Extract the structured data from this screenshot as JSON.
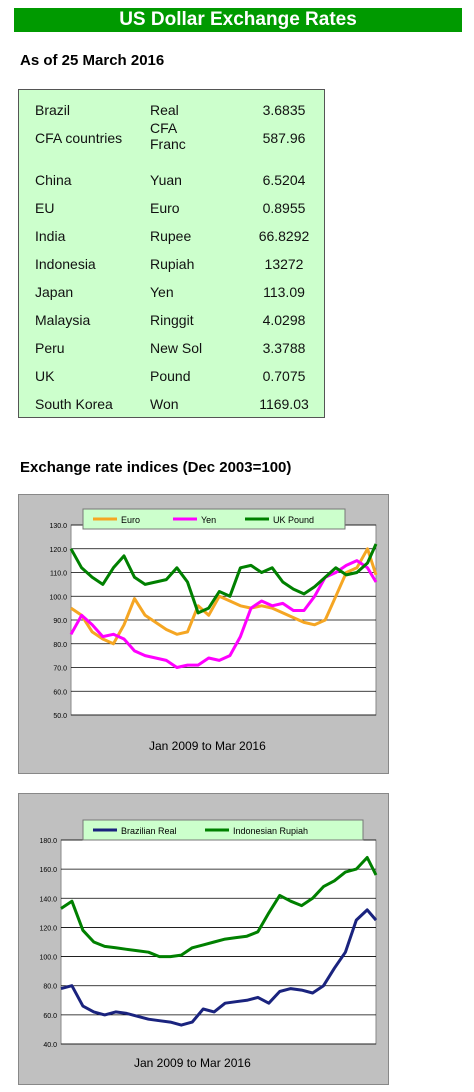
{
  "title": "US Dollar Exchange Rates",
  "as_of": "As of 25 March 2016",
  "rates": [
    {
      "country": "Brazil",
      "currency": "Real",
      "value": "3.6835"
    },
    {
      "country": "CFA countries",
      "currency": "CFA Franc",
      "value": "587.96"
    },
    {
      "country": "China",
      "currency": "Yuan",
      "value": "6.5204"
    },
    {
      "country": "EU",
      "currency": "Euro",
      "value": "0.8955"
    },
    {
      "country": "India",
      "currency": "Rupee",
      "value": "66.8292"
    },
    {
      "country": "Indonesia",
      "currency": "Rupiah",
      "value": "13272"
    },
    {
      "country": "Japan",
      "currency": "Yen",
      "value": "113.09"
    },
    {
      "country": "Malaysia",
      "currency": "Ringgit",
      "value": "4.0298"
    },
    {
      "country": "Peru",
      "currency": "New Sol",
      "value": "3.3788"
    },
    {
      "country": "UK",
      "currency": "Pound",
      "value": "0.7075"
    },
    {
      "country": "South Korea",
      "currency": "Won",
      "value": "1169.03"
    }
  ],
  "indices_heading": "Exchange rate indices (Dec 2003=100)",
  "chart_data": [
    {
      "type": "line",
      "xlabel": "Jan 2009 to Mar 2016",
      "ylim": [
        50,
        130
      ],
      "y_ticks": [
        "50.0",
        "60.0",
        "70.0",
        "80.0",
        "90.0",
        "100.0",
        "110.0",
        "120.0",
        "130.0"
      ],
      "grid": true,
      "legend": "top",
      "x": [
        2009.0,
        2009.25,
        2009.5,
        2009.75,
        2010.0,
        2010.25,
        2010.5,
        2010.75,
        2011.0,
        2011.25,
        2011.5,
        2011.75,
        2012.0,
        2012.25,
        2012.5,
        2012.75,
        2013.0,
        2013.25,
        2013.5,
        2013.75,
        2014.0,
        2014.25,
        2014.5,
        2014.75,
        2015.0,
        2015.25,
        2015.5,
        2015.75,
        2016.0,
        2016.2
      ],
      "series": [
        {
          "name": "Euro",
          "color": "#f5a623",
          "values": [
            95,
            92,
            85,
            82,
            80,
            88,
            99,
            92,
            89,
            86,
            84,
            85,
            96,
            92,
            100,
            98,
            96,
            95,
            96,
            95,
            93,
            91,
            89,
            88,
            90,
            100,
            110,
            112,
            120,
            109
          ]
        },
        {
          "name": "Yen",
          "color": "#ff00ff",
          "values": [
            84,
            92,
            88,
            83,
            84,
            82,
            77,
            75,
            74,
            73,
            70,
            71,
            71,
            74,
            73,
            75,
            83,
            95,
            98,
            96,
            97,
            94,
            94,
            100,
            108,
            110,
            113,
            115,
            112,
            106
          ]
        },
        {
          "name": "UK Pound",
          "color": "#008000",
          "values": [
            120,
            112,
            108,
            105,
            112,
            117,
            108,
            105,
            106,
            107,
            112,
            106,
            93,
            95,
            102,
            100,
            112,
            113,
            110,
            112,
            106,
            103,
            101,
            104,
            108,
            112,
            109,
            110,
            114,
            122
          ]
        }
      ]
    },
    {
      "type": "line",
      "xlabel": "Jan 2009 to Mar 2016",
      "ylim": [
        40,
        180
      ],
      "y_ticks": [
        "40.0",
        "60.0",
        "80.0",
        "100.0",
        "120.0",
        "140.0",
        "160.0",
        "180.0"
      ],
      "grid": true,
      "legend": "top",
      "x": [
        2009.0,
        2009.25,
        2009.5,
        2009.75,
        2010.0,
        2010.25,
        2010.5,
        2010.75,
        2011.0,
        2011.25,
        2011.5,
        2011.75,
        2012.0,
        2012.25,
        2012.5,
        2012.75,
        2013.0,
        2013.25,
        2013.5,
        2013.75,
        2014.0,
        2014.25,
        2014.5,
        2014.75,
        2015.0,
        2015.25,
        2015.5,
        2015.75,
        2016.0,
        2016.2
      ],
      "series": [
        {
          "name": "Brazilian Real",
          "color": "#1a237e",
          "values": [
            78,
            80,
            66,
            62,
            60,
            62,
            61,
            59,
            57,
            56,
            55,
            53,
            55,
            64,
            62,
            68,
            69,
            70,
            72,
            68,
            76,
            78,
            77,
            75,
            80,
            92,
            103,
            125,
            132,
            125
          ]
        },
        {
          "name": "Indonesian Rupiah",
          "color": "#008000",
          "values": [
            133,
            138,
            118,
            110,
            107,
            106,
            105,
            104,
            103,
            100,
            100,
            101,
            106,
            108,
            110,
            112,
            113,
            114,
            117,
            130,
            142,
            138,
            135,
            140,
            148,
            152,
            158,
            160,
            168,
            156
          ]
        }
      ]
    }
  ]
}
